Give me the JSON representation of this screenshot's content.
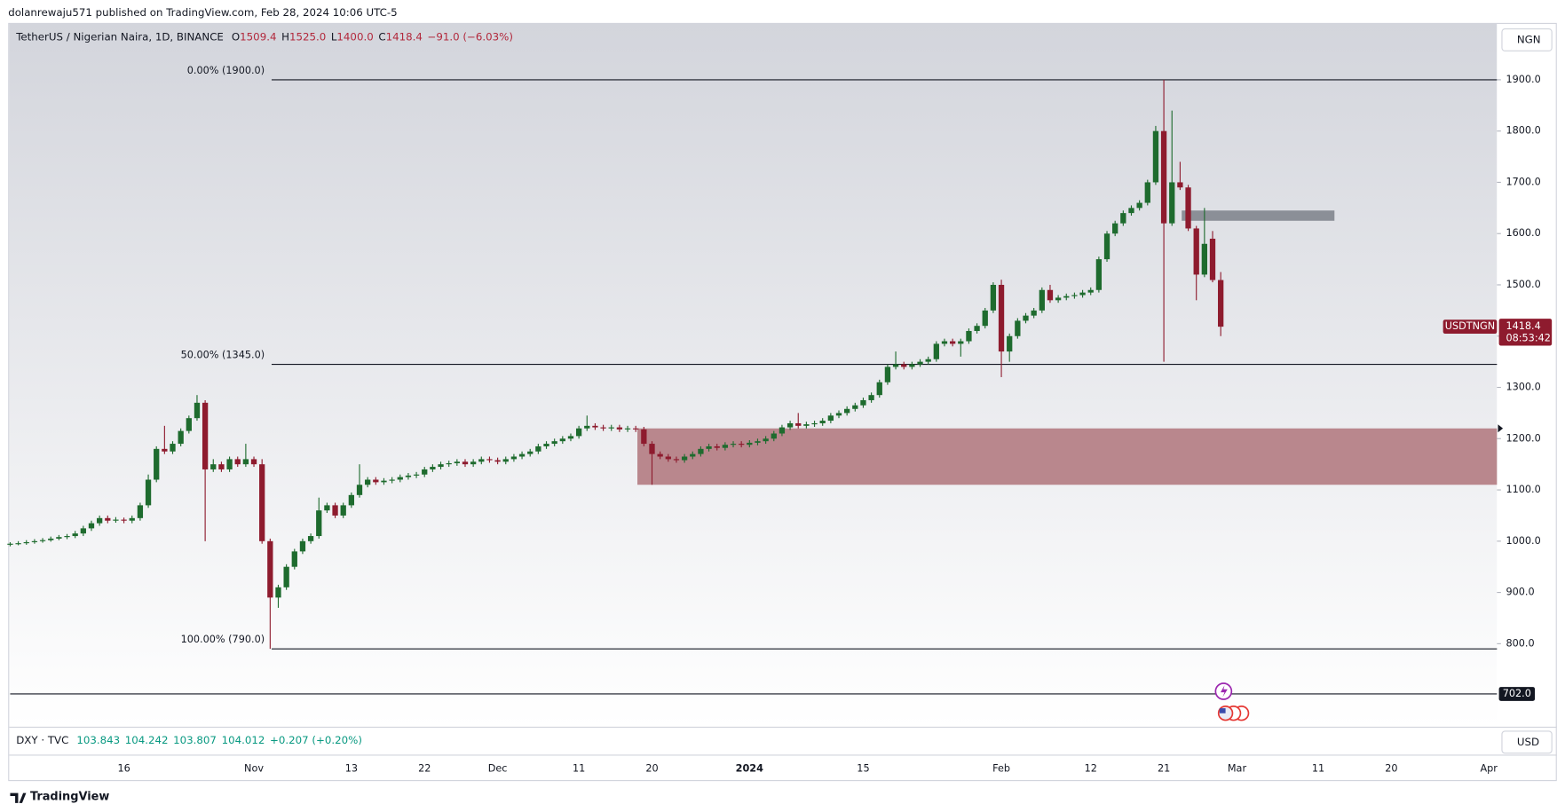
{
  "publisher": "dolanrewaju571 published on TradingView.com, Feb 28, 2024 10:06 UTC-5",
  "header": {
    "symbol": "TetherUS / Nigerian Naira, 1D, BINANCE",
    "ohlc": [
      {
        "k": "O",
        "v": "1509.4"
      },
      {
        "k": "H",
        "v": "1525.0"
      },
      {
        "k": "L",
        "v": "1400.0"
      },
      {
        "k": "C",
        "v": "1418.4"
      }
    ],
    "change": "−91.0 (−6.03%)"
  },
  "currency": "NGN",
  "pane": {
    "symbol": "DXY · TVC",
    "values": [
      "103.843",
      "104.242",
      "103.807",
      "104.012",
      "+0.207 (+0.20%)"
    ],
    "currency": "USD"
  },
  "footer": "TradingView",
  "chart_data": {
    "type": "candlestick",
    "up_color": "#1e6b2e",
    "down_color": "#8e1b2e",
    "xlim": [
      0,
      183
    ],
    "ylim": [
      641,
      2007
    ],
    "yticks": [
      {
        "value": 800,
        "label": "800.0"
      },
      {
        "value": 900,
        "label": "900.0"
      },
      {
        "value": 1000,
        "label": "1000.0"
      },
      {
        "value": 1100,
        "label": "1100.0"
      },
      {
        "value": 1200,
        "label": "1200.0"
      },
      {
        "value": 1300,
        "label": "1300.0"
      },
      {
        "value": 1400,
        "label": "1400.0"
      },
      {
        "value": 1500,
        "label": "1500.0"
      },
      {
        "value": 1600,
        "label": "1600.0"
      },
      {
        "value": 1700,
        "label": "1700.0"
      },
      {
        "value": 1800,
        "label": "1800.0"
      },
      {
        "value": 1900,
        "label": "1900.0"
      }
    ],
    "xticks": [
      {
        "value": 14,
        "label": "16"
      },
      {
        "value": 30,
        "label": "Nov"
      },
      {
        "value": 42,
        "label": "13"
      },
      {
        "value": 51,
        "label": "22"
      },
      {
        "value": 60,
        "label": "Dec"
      },
      {
        "value": 70,
        "label": "11"
      },
      {
        "value": 79,
        "label": "20"
      },
      {
        "value": 91,
        "label": "2024"
      },
      {
        "value": 105,
        "label": "15"
      },
      {
        "value": 122,
        "label": "Feb"
      },
      {
        "value": 133,
        "label": "12"
      },
      {
        "value": 142,
        "label": "21"
      },
      {
        "value": 151,
        "label": "Mar"
      },
      {
        "value": 161,
        "label": "11"
      },
      {
        "value": 170,
        "label": "20"
      },
      {
        "value": 182,
        "label": "Apr"
      }
    ],
    "fib_levels": [
      {
        "value": 1900,
        "label": "0.00% (1900.0)"
      },
      {
        "value": 1345,
        "label": "50.00% (1345.0)"
      },
      {
        "value": 790,
        "label": "100.00% (790.0)"
      }
    ],
    "zones": [
      {
        "from": 1110,
        "to": 1220,
        "start": 77.2,
        "end": 183,
        "color": "#b9878d"
      },
      {
        "from": 1625,
        "to": 1645,
        "start": 144.2,
        "end": 163,
        "color": "#8b8f97"
      }
    ],
    "hline": {
      "value": 702,
      "label": "702.0"
    },
    "last_name": "USDTNGN",
    "countdown": "08:53:42",
    "candles": [
      [
        993,
        998,
        990,
        995
      ],
      [
        995,
        1000,
        992,
        996
      ],
      [
        996,
        1002,
        993,
        998
      ],
      [
        998,
        1004,
        995,
        1000
      ],
      [
        1000,
        1006,
        997,
        1002
      ],
      [
        1002,
        1009,
        999,
        1005
      ],
      [
        1005,
        1012,
        1002,
        1008
      ],
      [
        1008,
        1014,
        1004,
        1010
      ],
      [
        1010,
        1020,
        1006,
        1015
      ],
      [
        1015,
        1030,
        1010,
        1025
      ],
      [
        1025,
        1040,
        1020,
        1035
      ],
      [
        1035,
        1050,
        1030,
        1045
      ],
      [
        1045,
        1050,
        1035,
        1040
      ],
      [
        1040,
        1047,
        1036,
        1042
      ],
      [
        1042,
        1046,
        1035,
        1040
      ],
      [
        1040,
        1050,
        1035,
        1045
      ],
      [
        1045,
        1075,
        1040,
        1070
      ],
      [
        1070,
        1130,
        1065,
        1120
      ],
      [
        1120,
        1185,
        1115,
        1180
      ],
      [
        1180,
        1225,
        1170,
        1175
      ],
      [
        1175,
        1195,
        1170,
        1190
      ],
      [
        1190,
        1220,
        1185,
        1215
      ],
      [
        1215,
        1245,
        1210,
        1240
      ],
      [
        1240,
        1285,
        1235,
        1270
      ],
      [
        1270,
        1275,
        1000,
        1140
      ],
      [
        1140,
        1160,
        1135,
        1150
      ],
      [
        1150,
        1155,
        1135,
        1140
      ],
      [
        1140,
        1165,
        1135,
        1160
      ],
      [
        1160,
        1165,
        1145,
        1150
      ],
      [
        1150,
        1190,
        1145,
        1160
      ],
      [
        1160,
        1165,
        1145,
        1150
      ],
      [
        1150,
        1160,
        995,
        1000
      ],
      [
        1000,
        1005,
        790,
        890
      ],
      [
        890,
        915,
        870,
        910
      ],
      [
        910,
        955,
        905,
        950
      ],
      [
        950,
        985,
        945,
        980
      ],
      [
        980,
        1005,
        975,
        1000
      ],
      [
        1000,
        1015,
        995,
        1010
      ],
      [
        1010,
        1085,
        1005,
        1060
      ],
      [
        1060,
        1075,
        1055,
        1070
      ],
      [
        1070,
        1075,
        1045,
        1050
      ],
      [
        1050,
        1075,
        1045,
        1070
      ],
      [
        1070,
        1095,
        1065,
        1090
      ],
      [
        1090,
        1150,
        1085,
        1110
      ],
      [
        1110,
        1125,
        1105,
        1120
      ],
      [
        1120,
        1125,
        1110,
        1115
      ],
      [
        1115,
        1123,
        1110,
        1118
      ],
      [
        1118,
        1125,
        1113,
        1120
      ],
      [
        1120,
        1130,
        1115,
        1125
      ],
      [
        1125,
        1133,
        1120,
        1128
      ],
      [
        1128,
        1135,
        1123,
        1130
      ],
      [
        1130,
        1145,
        1125,
        1140
      ],
      [
        1140,
        1150,
        1135,
        1145
      ],
      [
        1145,
        1155,
        1140,
        1150
      ],
      [
        1150,
        1157,
        1145,
        1152
      ],
      [
        1152,
        1160,
        1147,
        1155
      ],
      [
        1155,
        1160,
        1145,
        1150
      ],
      [
        1150,
        1160,
        1145,
        1155
      ],
      [
        1155,
        1165,
        1150,
        1160
      ],
      [
        1160,
        1165,
        1153,
        1158
      ],
      [
        1158,
        1163,
        1150,
        1155
      ],
      [
        1155,
        1165,
        1150,
        1160
      ],
      [
        1160,
        1170,
        1155,
        1165
      ],
      [
        1165,
        1175,
        1160,
        1170
      ],
      [
        1170,
        1180,
        1165,
        1175
      ],
      [
        1175,
        1190,
        1170,
        1185
      ],
      [
        1185,
        1195,
        1180,
        1190
      ],
      [
        1190,
        1200,
        1185,
        1195
      ],
      [
        1195,
        1205,
        1190,
        1200
      ],
      [
        1200,
        1210,
        1195,
        1205
      ],
      [
        1205,
        1225,
        1200,
        1220
      ],
      [
        1220,
        1245,
        1215,
        1225
      ],
      [
        1225,
        1230,
        1217,
        1222
      ],
      [
        1222,
        1227,
        1215,
        1220
      ],
      [
        1220,
        1227,
        1215,
        1222
      ],
      [
        1222,
        1227,
        1213,
        1218
      ],
      [
        1218,
        1225,
        1213,
        1220
      ],
      [
        1220,
        1225,
        1213,
        1218
      ],
      [
        1218,
        1223,
        1185,
        1190
      ],
      [
        1190,
        1195,
        1110,
        1170
      ],
      [
        1170,
        1175,
        1160,
        1165
      ],
      [
        1165,
        1170,
        1155,
        1160
      ],
      [
        1160,
        1165,
        1153,
        1158
      ],
      [
        1158,
        1170,
        1153,
        1165
      ],
      [
        1165,
        1175,
        1160,
        1170
      ],
      [
        1170,
        1185,
        1165,
        1180
      ],
      [
        1180,
        1190,
        1175,
        1185
      ],
      [
        1185,
        1190,
        1177,
        1182
      ],
      [
        1182,
        1193,
        1177,
        1188
      ],
      [
        1188,
        1195,
        1183,
        1190
      ],
      [
        1190,
        1195,
        1183,
        1188
      ],
      [
        1188,
        1197,
        1183,
        1192
      ],
      [
        1192,
        1200,
        1187,
        1195
      ],
      [
        1195,
        1205,
        1190,
        1200
      ],
      [
        1200,
        1215,
        1195,
        1210
      ],
      [
        1210,
        1227,
        1205,
        1222
      ],
      [
        1222,
        1235,
        1217,
        1230
      ],
      [
        1230,
        1250,
        1220,
        1225
      ],
      [
        1225,
        1233,
        1220,
        1228
      ],
      [
        1228,
        1235,
        1223,
        1230
      ],
      [
        1230,
        1240,
        1225,
        1235
      ],
      [
        1235,
        1250,
        1230,
        1245
      ],
      [
        1245,
        1255,
        1240,
        1250
      ],
      [
        1250,
        1263,
        1245,
        1258
      ],
      [
        1258,
        1270,
        1253,
        1265
      ],
      [
        1265,
        1280,
        1260,
        1275
      ],
      [
        1275,
        1290,
        1270,
        1285
      ],
      [
        1285,
        1315,
        1280,
        1310
      ],
      [
        1310,
        1345,
        1305,
        1340
      ],
      [
        1340,
        1370,
        1335,
        1345
      ],
      [
        1345,
        1350,
        1335,
        1340
      ],
      [
        1340,
        1350,
        1335,
        1345
      ],
      [
        1345,
        1355,
        1340,
        1350
      ],
      [
        1350,
        1360,
        1345,
        1355
      ],
      [
        1355,
        1390,
        1350,
        1385
      ],
      [
        1385,
        1395,
        1380,
        1390
      ],
      [
        1390,
        1395,
        1380,
        1385
      ],
      [
        1385,
        1395,
        1360,
        1390
      ],
      [
        1390,
        1415,
        1385,
        1410
      ],
      [
        1410,
        1425,
        1405,
        1420
      ],
      [
        1420,
        1455,
        1415,
        1450
      ],
      [
        1450,
        1505,
        1445,
        1500
      ],
      [
        1500,
        1510,
        1320,
        1370
      ],
      [
        1370,
        1405,
        1350,
        1400
      ],
      [
        1400,
        1435,
        1395,
        1430
      ],
      [
        1430,
        1445,
        1425,
        1440
      ],
      [
        1440,
        1455,
        1435,
        1450
      ],
      [
        1450,
        1495,
        1445,
        1490
      ],
      [
        1490,
        1500,
        1465,
        1470
      ],
      [
        1470,
        1480,
        1465,
        1475
      ],
      [
        1475,
        1483,
        1470,
        1478
      ],
      [
        1478,
        1485,
        1473,
        1480
      ],
      [
        1480,
        1490,
        1475,
        1485
      ],
      [
        1485,
        1495,
        1480,
        1490
      ],
      [
        1490,
        1555,
        1485,
        1550
      ],
      [
        1550,
        1605,
        1545,
        1600
      ],
      [
        1600,
        1625,
        1595,
        1620
      ],
      [
        1620,
        1645,
        1615,
        1640
      ],
      [
        1640,
        1655,
        1635,
        1650
      ],
      [
        1650,
        1665,
        1645,
        1660
      ],
      [
        1660,
        1705,
        1655,
        1700
      ],
      [
        1700,
        1810,
        1695,
        1800
      ],
      [
        1800,
        1900,
        1350,
        1620
      ],
      [
        1620,
        1840,
        1615,
        1700
      ],
      [
        1700,
        1740,
        1685,
        1690
      ],
      [
        1690,
        1695,
        1605,
        1610
      ],
      [
        1610,
        1615,
        1470,
        1520
      ],
      [
        1520,
        1650,
        1515,
        1580
      ],
      [
        1590,
        1605,
        1505,
        1509.4
      ],
      [
        1509.4,
        1525,
        1400,
        1418.4
      ]
    ]
  }
}
